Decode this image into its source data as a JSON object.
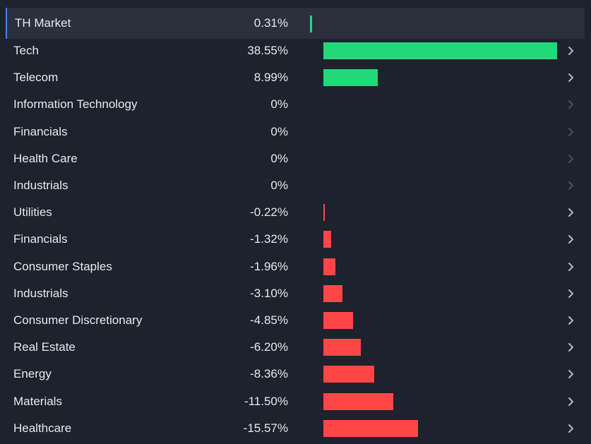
{
  "market": {
    "name": "TH Market",
    "value_label": "0.31%",
    "value": 0.31
  },
  "colors": {
    "positive": "#22d87a",
    "negative": "#ff4646",
    "background": "#1e222d",
    "chevron_active": "#b4b8c2",
    "chevron_disabled": "#4a4f5b"
  },
  "sectors": [
    {
      "name": "Tech",
      "value_label": "38.55%",
      "value": 38.55,
      "chevron": "chevron-right-icon",
      "enabled": true
    },
    {
      "name": "Telecom",
      "value_label": "8.99%",
      "value": 8.99,
      "chevron": "chevron-right-icon",
      "enabled": true
    },
    {
      "name": "Information Technology",
      "value_label": "0%",
      "value": 0,
      "chevron": "chevron-right-icon",
      "enabled": false
    },
    {
      "name": "Financials",
      "value_label": "0%",
      "value": 0,
      "chevron": "chevron-right-icon",
      "enabled": false
    },
    {
      "name": "Health Care",
      "value_label": "0%",
      "value": 0,
      "chevron": "chevron-right-icon",
      "enabled": false
    },
    {
      "name": "Industrials",
      "value_label": "0%",
      "value": 0,
      "chevron": "chevron-right-icon",
      "enabled": false
    },
    {
      "name": "Utilities",
      "value_label": "-0.22%",
      "value": -0.22,
      "chevron": "chevron-right-icon",
      "enabled": true
    },
    {
      "name": "Financials",
      "value_label": "-1.32%",
      "value": -1.32,
      "chevron": "chevron-right-icon",
      "enabled": true
    },
    {
      "name": "Consumer Staples",
      "value_label": "-1.96%",
      "value": -1.96,
      "chevron": "chevron-right-icon",
      "enabled": true
    },
    {
      "name": "Industrials",
      "value_label": "-3.10%",
      "value": -3.1,
      "chevron": "chevron-right-icon",
      "enabled": true
    },
    {
      "name": "Consumer Discretionary",
      "value_label": "-4.85%",
      "value": -4.85,
      "chevron": "chevron-right-icon",
      "enabled": true
    },
    {
      "name": "Real Estate",
      "value_label": "-6.20%",
      "value": -6.2,
      "chevron": "chevron-right-icon",
      "enabled": true
    },
    {
      "name": "Energy",
      "value_label": "-8.36%",
      "value": -8.36,
      "chevron": "chevron-right-icon",
      "enabled": true
    },
    {
      "name": "Materials",
      "value_label": "-11.50%",
      "value": -11.5,
      "chevron": "chevron-right-icon",
      "enabled": true
    },
    {
      "name": "Healthcare",
      "value_label": "-15.57%",
      "value": -15.57,
      "chevron": "chevron-right-icon",
      "enabled": true
    }
  ]
}
